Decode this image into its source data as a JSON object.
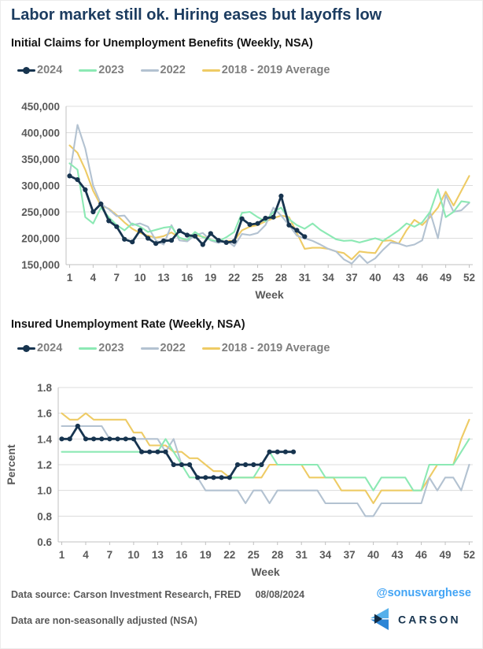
{
  "page": {
    "title": "Labor market still ok. Hiring eases but layoffs low",
    "footer": {
      "source_label": "Data source: Carson Investment Research, FRED",
      "source_date": "08/08/2024",
      "note": "Data are non-seasonally adjusted (NSA)",
      "handle": "@sonusvarghese",
      "logo_text": "CARSON"
    },
    "colors": {
      "title_navy": "#1c3c60",
      "axis_text": "#595959",
      "legend_text": "#7f7f7f",
      "gridline": "#dcdcdc",
      "axis_line": "#c0c0c0",
      "handle_blue": "#42a4f5",
      "logo_light_blue": "#56b0ea",
      "logo_mid_blue": "#2b85d6",
      "logo_navy": "#16334e"
    }
  },
  "chart_data": [
    {
      "type": "line",
      "title": "Initial Claims for Unemployment Benefits (Weekly, NSA)",
      "xlabel": "Week",
      "ylabel": "",
      "xlim": [
        1,
        52
      ],
      "ylim": [
        150000,
        450000
      ],
      "grid": true,
      "legend_position": "top-left",
      "x_ticks": [
        1,
        4,
        7,
        10,
        13,
        16,
        19,
        22,
        25,
        28,
        31,
        34,
        37,
        40,
        43,
        46,
        49,
        52
      ],
      "y_ticks": [
        150000,
        200000,
        250000,
        300000,
        350000,
        400000,
        450000
      ],
      "y_tick_labels": [
        "150,000",
        "200,000",
        "250,000",
        "300,000",
        "350,000",
        "400,000",
        "450,000"
      ],
      "series": [
        {
          "name": "2024",
          "color": "#17344f",
          "marker": true,
          "week_start": 1,
          "values": [
            318000,
            311000,
            292000,
            250000,
            265000,
            233000,
            222000,
            198000,
            193000,
            215000,
            200000,
            190000,
            195000,
            196000,
            214000,
            206000,
            204000,
            188000,
            209000,
            196000,
            192000,
            194000,
            237000,
            226000,
            228000,
            238000,
            240000,
            280000,
            225000,
            215000,
            203000
          ]
        },
        {
          "name": "2023",
          "color": "#8ce9b4",
          "marker": false,
          "week_start": 1,
          "values": [
            342000,
            330000,
            240000,
            228000,
            258000,
            240000,
            225000,
            215000,
            228000,
            222000,
            212000,
            216000,
            220000,
            222000,
            201000,
            197000,
            212000,
            202000,
            197000,
            194000,
            202000,
            212000,
            248000,
            250000,
            240000,
            232000,
            250000,
            258000,
            236000,
            225000,
            218000,
            228000,
            216000,
            207000,
            198000,
            195000,
            196000,
            192000,
            196000,
            200000,
            195000,
            205000,
            215000,
            228000,
            222000,
            230000,
            250000,
            293000,
            240000,
            250000,
            270000,
            268000
          ]
        },
        {
          "name": "2022",
          "color": "#b3c2d1",
          "marker": false,
          "week_start": 1,
          "values": [
            320000,
            415000,
            370000,
            300000,
            265000,
            255000,
            242000,
            243000,
            225000,
            228000,
            222000,
            196000,
            188000,
            225000,
            196000,
            194000,
            206000,
            210000,
            196000,
            191000,
            196000,
            185000,
            208000,
            206000,
            210000,
            225000,
            258000,
            243000,
            225000,
            205000,
            200000,
            195000,
            188000,
            180000,
            175000,
            160000,
            152000,
            168000,
            153000,
            162000,
            178000,
            192000,
            190000,
            185000,
            188000,
            196000,
            250000,
            200000,
            282000,
            250000,
            253000,
            267000
          ]
        },
        {
          "name": "2018 - 2019 Average",
          "color": "#eecb65",
          "marker": false,
          "week_start": 1,
          "values": [
            376000,
            362000,
            330000,
            290000,
            262000,
            256000,
            244000,
            230000,
            218000,
            210000,
            205000,
            201000,
            204000,
            211000,
            201000,
            196000,
            206000,
            203000,
            197000,
            193000,
            195000,
            195000,
            215000,
            222000,
            225000,
            232000,
            238000,
            243000,
            240000,
            210000,
            180000,
            182000,
            182000,
            180000,
            175000,
            172000,
            160000,
            175000,
            173000,
            172000,
            195000,
            196000,
            190000,
            215000,
            235000,
            225000,
            240000,
            258000,
            288000,
            262000,
            290000,
            318000
          ]
        }
      ]
    },
    {
      "type": "line",
      "title": "Insured Unemployment Rate (Weekly, NSA)",
      "xlabel": "Week",
      "ylabel": "Percent",
      "xlim": [
        1,
        52
      ],
      "ylim": [
        0.6,
        1.8
      ],
      "grid": true,
      "legend_position": "top-left",
      "x_ticks": [
        1,
        4,
        7,
        10,
        13,
        16,
        19,
        22,
        25,
        28,
        31,
        34,
        37,
        40,
        43,
        46,
        49,
        52
      ],
      "y_ticks": [
        0.6,
        0.8,
        1.0,
        1.2,
        1.4,
        1.6,
        1.8
      ],
      "y_tick_labels": [
        "0.6",
        "0.8",
        "1.0",
        "1.2",
        "1.4",
        "1.6",
        "1.8"
      ],
      "series": [
        {
          "name": "2024",
          "color": "#17344f",
          "marker": true,
          "week_start": 1,
          "values": [
            1.4,
            1.4,
            1.5,
            1.4,
            1.4,
            1.4,
            1.4,
            1.4,
            1.4,
            1.4,
            1.3,
            1.3,
            1.3,
            1.3,
            1.2,
            1.2,
            1.2,
            1.1,
            1.1,
            1.1,
            1.1,
            1.1,
            1.2,
            1.2,
            1.2,
            1.2,
            1.3,
            1.3,
            1.3,
            1.3
          ]
        },
        {
          "name": "2023",
          "color": "#8ce9b4",
          "marker": false,
          "week_start": 1,
          "values": [
            1.3,
            1.3,
            1.3,
            1.3,
            1.3,
            1.3,
            1.3,
            1.3,
            1.3,
            1.3,
            1.3,
            1.3,
            1.3,
            1.4,
            1.3,
            1.2,
            1.1,
            1.1,
            1.1,
            1.1,
            1.1,
            1.1,
            1.1,
            1.1,
            1.1,
            1.2,
            1.3,
            1.2,
            1.2,
            1.2,
            1.2,
            1.2,
            1.2,
            1.1,
            1.1,
            1.1,
            1.1,
            1.1,
            1.1,
            1.0,
            1.1,
            1.1,
            1.1,
            1.1,
            1.0,
            1.0,
            1.2,
            1.2,
            1.2,
            1.2,
            1.3,
            1.4
          ]
        },
        {
          "name": "2022",
          "color": "#b3c2d1",
          "marker": false,
          "week_start": 1,
          "values": [
            1.5,
            1.5,
            1.5,
            1.5,
            1.5,
            1.5,
            1.4,
            1.4,
            1.4,
            1.4,
            1.4,
            1.4,
            1.4,
            1.3,
            1.4,
            1.2,
            1.2,
            1.1,
            1.0,
            1.0,
            1.0,
            1.0,
            1.0,
            0.9,
            1.0,
            1.0,
            0.9,
            1.0,
            1.0,
            1.0,
            1.0,
            1.0,
            1.0,
            0.9,
            0.9,
            0.9,
            0.9,
            0.9,
            0.8,
            0.8,
            0.9,
            0.9,
            0.9,
            0.9,
            0.9,
            0.9,
            1.1,
            1.0,
            1.1,
            1.1,
            1.0,
            1.2
          ]
        },
        {
          "name": "2018 - 2019 Average",
          "color": "#eecb65",
          "marker": false,
          "week_start": 1,
          "values": [
            1.6,
            1.55,
            1.55,
            1.6,
            1.55,
            1.55,
            1.55,
            1.55,
            1.55,
            1.45,
            1.45,
            1.35,
            1.35,
            1.35,
            1.3,
            1.3,
            1.25,
            1.25,
            1.2,
            1.15,
            1.15,
            1.1,
            1.1,
            1.1,
            1.1,
            1.1,
            1.2,
            1.2,
            1.2,
            1.2,
            1.2,
            1.1,
            1.1,
            1.1,
            1.1,
            1.0,
            1.0,
            1.0,
            1.0,
            0.9,
            1.0,
            1.0,
            1.0,
            1.0,
            1.0,
            1.0,
            1.1,
            1.2,
            1.2,
            1.2,
            1.4,
            1.55
          ]
        }
      ]
    }
  ]
}
